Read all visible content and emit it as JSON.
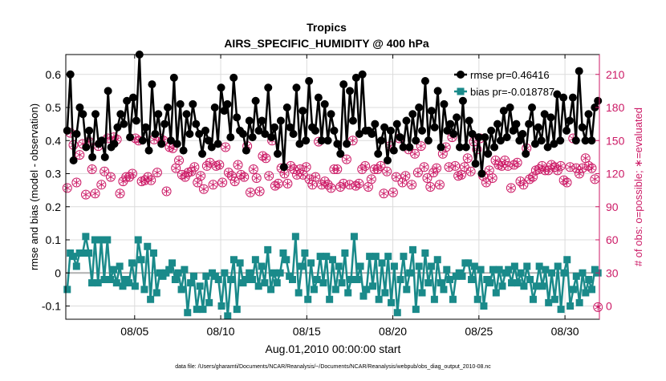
{
  "chart_data": {
    "type": "line",
    "title": "Tropics",
    "subtitle": "AIRS_SPECIFIC_HUMIDITY @ 400 hPa",
    "xlabel": "Aug.01,2010 00:00:00 start",
    "ylabel_left": "rmse and bias (model - observation)",
    "ylabel_right": "# of obs: o=possible; ∗=evaluated",
    "footnote": "data file: /Users/gharamti/Documents/NCAR/Reanalysis/~/Documents/NCAR/Reanalysis/webpub/obs_diag_output_2010-08.nc",
    "x_range_days": [
      1.0,
      32.0
    ],
    "x_ticks": [
      {
        "day": 5,
        "label": "08/05"
      },
      {
        "day": 10,
        "label": "08/10"
      },
      {
        "day": 15,
        "label": "08/15"
      },
      {
        "day": 20,
        "label": "08/20"
      },
      {
        "day": 25,
        "label": "08/25"
      },
      {
        "day": 30,
        "label": "08/30"
      }
    ],
    "ylim_left": [
      -0.14,
      0.66
    ],
    "yticks_left": [
      {
        "value": -0.1,
        "label": "-0.1"
      },
      {
        "value": 0,
        "label": "0"
      },
      {
        "value": 0.1,
        "label": "0.1"
      },
      {
        "value": 0.2,
        "label": "0.2"
      },
      {
        "value": 0.3,
        "label": "0.3"
      },
      {
        "value": 0.4,
        "label": "0.4"
      },
      {
        "value": 0.5,
        "label": "0.5"
      },
      {
        "value": 0.6,
        "label": "0.6"
      }
    ],
    "ylim_right": [
      -12,
      228
    ],
    "yticks_right": [
      {
        "value": 0,
        "label": "0"
      },
      {
        "value": 30,
        "label": "30"
      },
      {
        "value": 60,
        "label": "60"
      },
      {
        "value": 90,
        "label": "90"
      },
      {
        "value": 120,
        "label": "120"
      },
      {
        "value": 150,
        "label": "150"
      },
      {
        "value": 180,
        "label": "180"
      },
      {
        "value": 210,
        "label": "210"
      }
    ],
    "colors": {
      "rmse": "#000000",
      "bias": "#1a8a8a",
      "obs": "#cc1a66",
      "grid": "#dcdcdc",
      "zero_line": "#b0b0b0",
      "right_axis": "#cc1a66"
    },
    "legend_position": "top-right",
    "series": [
      {
        "name": "rmse pr=0.46416",
        "legend_label": "rmse pr=0.46416",
        "axis": "left",
        "values": [
          0.43,
          0.6,
          0.34,
          0.42,
          0.5,
          0.48,
          0.38,
          0.43,
          0.35,
          0.48,
          0.39,
          0.4,
          0.35,
          0.55,
          0.38,
          0.39,
          0.44,
          0.48,
          0.45,
          0.52,
          0.41,
          0.53,
          0.46,
          0.66,
          0.4,
          0.44,
          0.37,
          0.57,
          0.42,
          0.48,
          0.39,
          0.45,
          0.5,
          0.4,
          0.59,
          0.39,
          0.51,
          0.37,
          0.48,
          0.42,
          0.51,
          0.45,
          0.42,
          0.36,
          0.43,
          0.4,
          0.38,
          0.5,
          0.39,
          0.56,
          0.49,
          0.51,
          0.41,
          0.59,
          0.47,
          0.43,
          0.42,
          0.37,
          0.46,
          0.41,
          0.52,
          0.43,
          0.46,
          0.42,
          0.56,
          0.41,
          0.44,
          0.36,
          0.46,
          0.32,
          0.5,
          0.44,
          0.42,
          0.56,
          0.39,
          0.49,
          0.4,
          0.58,
          0.44,
          0.43,
          0.53,
          0.4,
          0.51,
          0.4,
          0.48,
          0.43,
          0.39,
          0.36,
          0.57,
          0.39,
          0.55,
          0.46,
          0.59,
          0.42,
          0.6,
          0.43,
          0.43,
          0.42,
          0.45,
          0.36,
          0.4,
          0.44,
          0.34,
          0.43,
          0.37,
          0.45,
          0.41,
          0.38,
          0.46,
          0.38,
          0.48,
          0.4,
          0.5,
          0.43,
          0.58,
          0.4,
          0.49,
          0.44,
          0.55,
          0.38,
          0.51,
          0.43,
          0.45,
          0.42,
          0.47,
          0.38,
          0.52,
          0.38,
          0.46,
          0.42,
          0.33,
          0.41,
          0.3,
          0.41,
          0.36,
          0.43,
          0.38,
          0.45,
          0.4,
          0.49,
          0.41,
          0.5,
          0.43,
          0.45,
          0.4,
          0.42,
          0.36,
          0.45,
          0.5,
          0.39,
          0.44,
          0.4,
          0.48,
          0.38,
          0.47,
          0.39,
          0.54,
          0.4,
          0.53,
          0.43,
          0.46,
          0.53,
          0.4,
          0.61,
          0.44,
          0.4,
          0.48,
          0.4,
          0.5,
          0.52
        ]
      },
      {
        "name": "bias pr=-0.018787",
        "legend_label": "bias pr=-0.018787",
        "axis": "left",
        "values": [
          -0.05,
          0.06,
          0.05,
          0.02,
          0.06,
          0.06,
          0.11,
          0.06,
          -0.03,
          0.1,
          -0.03,
          0.1,
          -0.02,
          0.1,
          -0.02,
          0.01,
          -0.03,
          0.02,
          -0.04,
          -0.02,
          -0.03,
          0.03,
          -0.04,
          0.1,
          0.04,
          -0.05,
          0.08,
          -0.08,
          0.06,
          -0.06,
          0.0,
          -0.01,
          0.0,
          0.01,
          0.03,
          -0.02,
          0.0,
          -0.05,
          0.01,
          -0.12,
          -0.03,
          -0.01,
          -0.11,
          -0.04,
          -0.11,
          -0.01,
          -0.09,
          0.0,
          -0.01,
          -0.02,
          -0.1,
          0.0,
          -0.13,
          -0.02,
          0.04,
          -0.11,
          0.03,
          -0.03,
          -0.02,
          0.0,
          -0.02,
          0.04,
          -0.04,
          0.02,
          -0.03,
          0.07,
          -0.05,
          0.0,
          -0.03,
          0.0,
          0.06,
          0.04,
          -0.01,
          -0.02,
          0.11,
          -0.06,
          0.02,
          0.06,
          -0.08,
          0.03,
          -0.05,
          -0.02,
          0.05,
          -0.03,
          0.05,
          -0.08,
          0.04,
          -0.05,
          0.02,
          -0.03,
          0.06,
          -0.06,
          -0.02,
          0.11,
          -0.02,
          0.02,
          -0.07,
          -0.05,
          0.05,
          -0.04,
          0.05,
          -0.08,
          0.03,
          -0.06,
          0.05,
          -0.09,
          0.02,
          -0.12,
          -0.02,
          0.05,
          -0.05,
          0.0,
          0.07,
          -0.11,
          0.02,
          -0.06,
          0.06,
          -0.03,
          0.02,
          -0.08,
          0.04,
          -0.03,
          -0.05,
          0.01,
          -0.02,
          -0.08,
          -0.01,
          0.0,
          -0.01,
          0.03,
          0.03,
          -0.02,
          0.02,
          -0.08,
          0.01,
          -0.1,
          -0.02,
          -0.03,
          0.01,
          -0.06,
          0.01,
          -0.04,
          0.0,
          0.01,
          -0.03,
          0.02,
          -0.03,
          0.0,
          -0.04,
          0.02,
          -0.02,
          -0.08,
          -0.04,
          0.02,
          -0.04,
          0.01,
          -0.09,
          0.0,
          -0.08,
          0.02,
          -0.11,
          0.0,
          0.04,
          -0.1,
          -0.05,
          -0.01,
          -0.09,
          0.0,
          -0.06,
          -0.02,
          -0.05,
          0.01,
          0.0
        ]
      },
      {
        "name": "possible observations",
        "axis": "right",
        "marker": "circle",
        "values": [
          107,
          157,
          146,
          112,
          137,
          147,
          101,
          149,
          124,
          102,
          145,
          110,
          122,
          152,
          117,
          153,
          151,
          102,
          113,
          117,
          117,
          120,
          152,
          150,
          113,
          114,
          117,
          114,
          151,
          121,
          152,
          150,
          104,
          144,
          143,
          125,
          132,
          119,
          117,
          121,
          122,
          126,
          112,
          118,
          106,
          127,
          130,
          110,
          127,
          128,
          112,
          144,
          121,
          118,
          113,
          128,
          119,
          117,
          145,
          103,
          124,
          116,
          104,
          136,
          134,
          118,
          150,
          109,
          111,
          125,
          120,
          111,
          127,
          124,
          119,
          124,
          119,
          126,
          115,
          110,
          117,
          149,
          110,
          113,
          110,
          107,
          124,
          124,
          108,
          111,
          133,
          110,
          150,
          109,
          111,
          124,
          127,
          108,
          115,
          124,
          124,
          127,
          102,
          122,
          145,
          103,
          117,
          152,
          112,
          118,
          142,
          110,
          138,
          121,
          145,
          126,
          116,
          108,
          121,
          125,
          110,
          138,
          144,
          126,
          153,
          127,
          118,
          119,
          126,
          134,
          122,
          149,
          142,
          152,
          118,
          112,
          123,
          116,
          132,
          128,
          127,
          132,
          127,
          107,
          128,
          130,
          113,
          110,
          143,
          115,
          117,
          123,
          124,
          127,
          123,
          123,
          128,
          126,
          123,
          127,
          114,
          112,
          126,
          152,
          125,
          120,
          125,
          134,
          127,
          125,
          115,
          -1
        ]
      },
      {
        "name": "evaluated observations",
        "axis": "right",
        "marker": "star",
        "values": [
          107,
          157,
          146,
          112,
          137,
          147,
          101,
          149,
          124,
          102,
          145,
          110,
          122,
          152,
          117,
          153,
          151,
          102,
          113,
          117,
          117,
          120,
          152,
          150,
          113,
          114,
          117,
          114,
          151,
          121,
          152,
          150,
          104,
          144,
          143,
          125,
          132,
          119,
          117,
          121,
          122,
          126,
          112,
          118,
          106,
          127,
          130,
          110,
          127,
          128,
          112,
          144,
          121,
          118,
          113,
          128,
          119,
          117,
          145,
          103,
          124,
          116,
          104,
          136,
          134,
          118,
          150,
          109,
          111,
          125,
          120,
          111,
          127,
          124,
          119,
          124,
          119,
          126,
          115,
          110,
          117,
          149,
          110,
          113,
          110,
          107,
          124,
          124,
          108,
          111,
          133,
          110,
          150,
          109,
          111,
          124,
          127,
          108,
          115,
          124,
          124,
          127,
          102,
          122,
          145,
          103,
          117,
          152,
          112,
          118,
          142,
          110,
          138,
          121,
          145,
          126,
          116,
          108,
          121,
          125,
          110,
          138,
          144,
          126,
          153,
          127,
          118,
          119,
          126,
          134,
          122,
          149,
          142,
          152,
          118,
          112,
          123,
          116,
          132,
          128,
          127,
          132,
          127,
          107,
          128,
          130,
          113,
          110,
          143,
          115,
          117,
          123,
          124,
          127,
          123,
          123,
          128,
          126,
          123,
          127,
          114,
          112,
          126,
          152,
          125,
          120,
          125,
          134,
          127,
          125,
          115,
          -1
        ]
      }
    ]
  }
}
